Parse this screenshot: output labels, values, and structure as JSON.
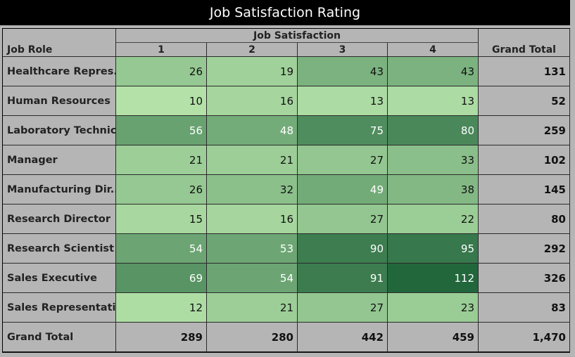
{
  "title": "Job Satisfaction Rating",
  "headers": {
    "row_dimension": "Job Role",
    "column_group": "Job Satisfaction",
    "columns": [
      "1",
      "2",
      "3",
      "4"
    ],
    "grand_total": "Grand Total"
  },
  "chart_data": {
    "type": "heatmap",
    "title": "Job Satisfaction Rating",
    "xlabel": "Job Satisfaction",
    "ylabel": "Job Role",
    "x": [
      "1",
      "2",
      "3",
      "4"
    ],
    "y": [
      "Healthcare Repres..",
      "Human Resources",
      "Laboratory Technic..",
      "Manager",
      "Manufacturing Dir..",
      "Research Director",
      "Research Scientist",
      "Sales Executive",
      "Sales Representati.."
    ],
    "values": [
      [
        26,
        19,
        43,
        43
      ],
      [
        10,
        16,
        13,
        13
      ],
      [
        56,
        48,
        75,
        80
      ],
      [
        21,
        21,
        27,
        33
      ],
      [
        26,
        32,
        49,
        38
      ],
      [
        15,
        16,
        27,
        22
      ],
      [
        54,
        53,
        90,
        95
      ],
      [
        69,
        54,
        91,
        112
      ],
      [
        12,
        21,
        27,
        23
      ]
    ],
    "row_totals": [
      "131",
      "52",
      "259",
      "102",
      "145",
      "80",
      "292",
      "326",
      "83"
    ],
    "column_totals_label": "Grand Total",
    "column_totals": [
      "289",
      "280",
      "442",
      "459"
    ],
    "grand_total": "1,470",
    "color_low": "#b3e1a8",
    "color_high": "#22663c"
  }
}
